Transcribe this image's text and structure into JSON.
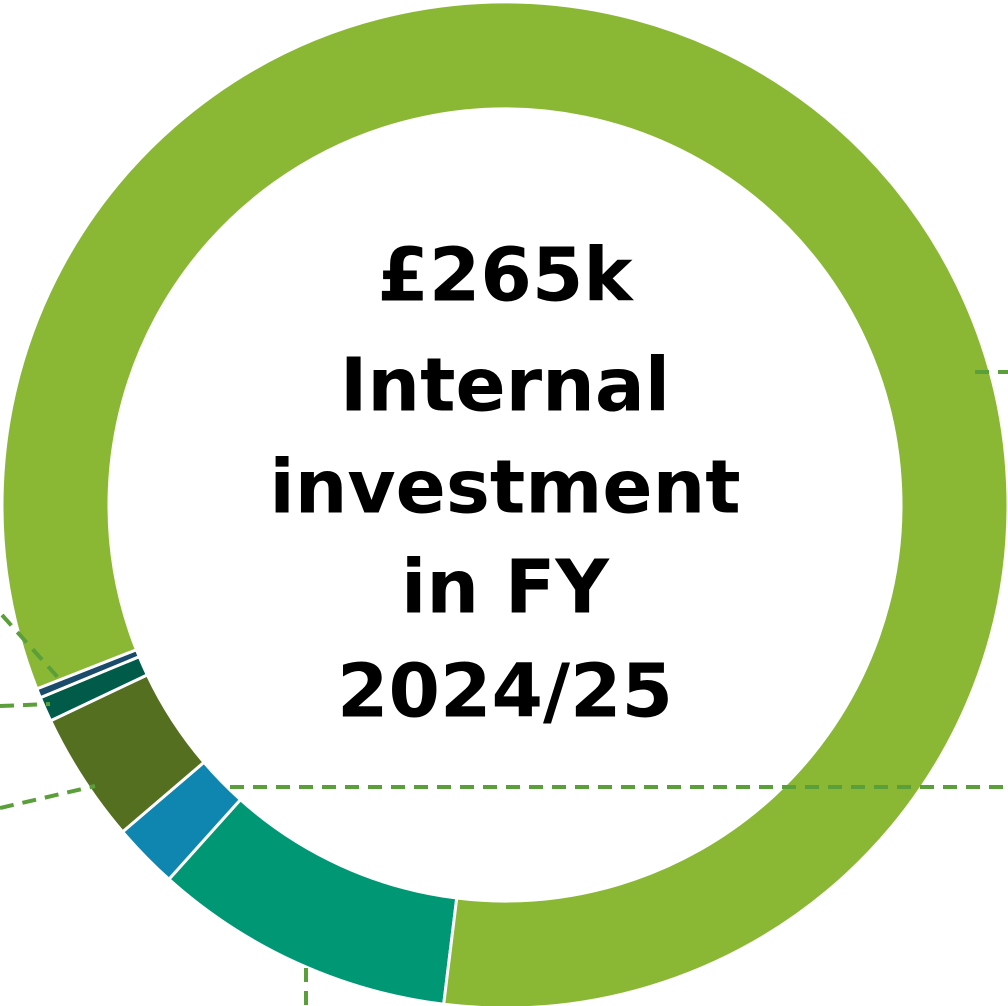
{
  "chart_data": {
    "type": "donut",
    "title": [
      "£265k",
      "Internal",
      "investment",
      "in FY",
      "2024/25"
    ],
    "values": [
      9.7,
      2.1,
      4.2,
      0.8,
      0.3,
      82.9
    ],
    "colors": [
      "#009775",
      "#0e86b0",
      "#556f21",
      "#005c48",
      "#1a4b6b",
      "#8ab835"
    ]
  }
}
